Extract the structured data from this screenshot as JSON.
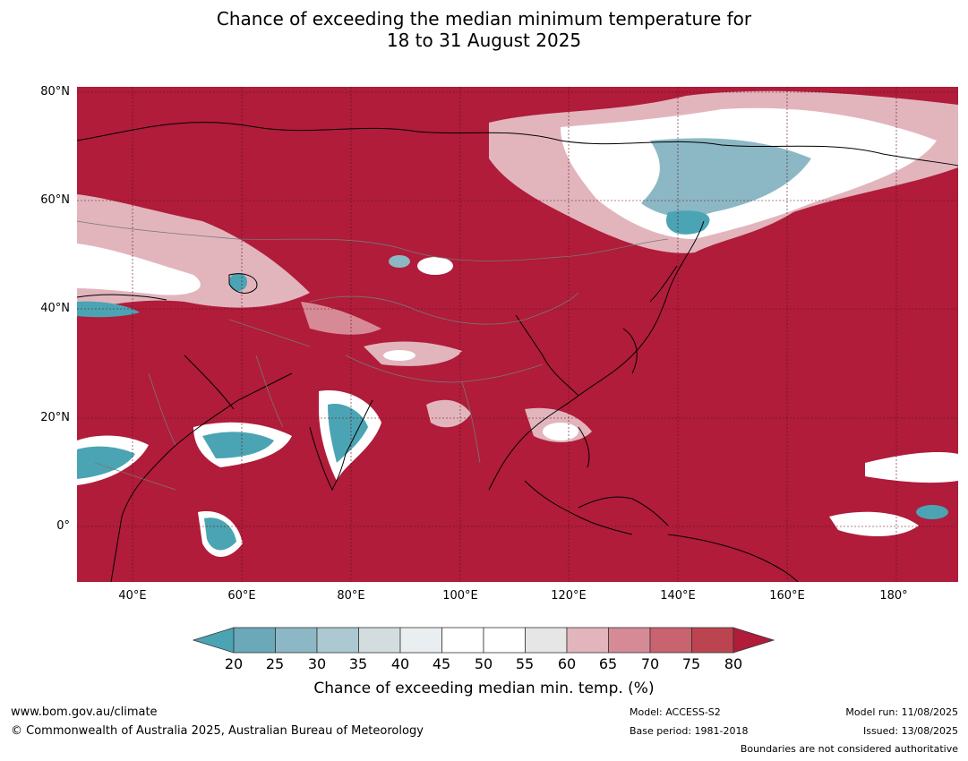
{
  "title": {
    "line1": "Chance of exceeding the median minimum temperature for",
    "line2": "18 to 31 August 2025"
  },
  "map": {
    "region_description_note": "",
    "lat_labels": [
      "80°N",
      "60°N",
      "40°N",
      "20°N",
      "0°"
    ],
    "lon_labels": [
      "40°E",
      "60°E",
      "80°E",
      "100°E",
      "120°E",
      "140°E",
      "160°E",
      "180°"
    ],
    "background_color": "#b01c3a"
  },
  "colorbar": {
    "ticks": [
      "20",
      "25",
      "30",
      "35",
      "40",
      "45",
      "50",
      "55",
      "60",
      "65",
      "70",
      "75",
      "80"
    ],
    "colors": [
      "#4ba4b3",
      "#6ba8b8",
      "#8bb8c4",
      "#acc8d0",
      "#d3dcde",
      "#e9eff1",
      "#ffffff",
      "#ffffff",
      "#e6e6e6",
      "#e2b5bd",
      "#d68a96",
      "#c8636f",
      "#bc4451",
      "#b01c3a"
    ],
    "label": "Chance of exceeding median min. temp. (%)"
  },
  "footer": {
    "website": "www.bom.gov.au/climate",
    "copyright": "© Commonwealth of Australia 2025, Australian Bureau of Meteorology",
    "model": "Model: ACCESS-S2",
    "base_period": "Base period: 1981-2018",
    "model_run": "Model run: 11/08/2025",
    "issued": "Issued: 13/08/2025",
    "disclaimer": "Boundaries are not considered authoritative"
  }
}
